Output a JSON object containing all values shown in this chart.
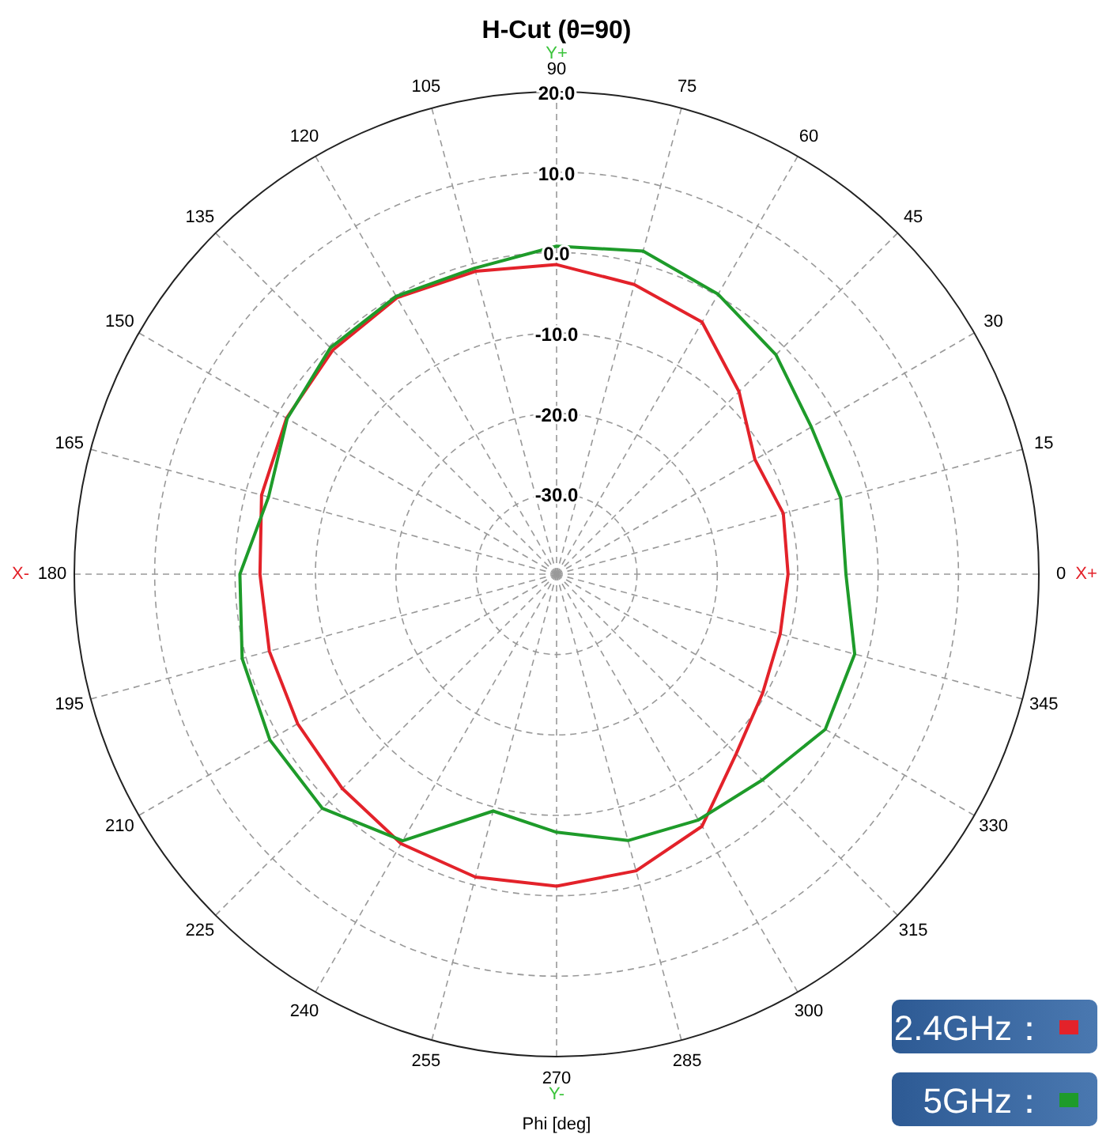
{
  "chart_data": {
    "type": "radar",
    "title": "H-Cut (θ=90)",
    "xlabel": "Phi [deg]",
    "categories": [
      "90",
      "75",
      "60",
      "45",
      "30",
      "15",
      "0",
      "345",
      "330",
      "315",
      "300",
      "285",
      "270",
      "255",
      "240",
      "225",
      "210",
      "195",
      "180",
      "165",
      "150",
      "135",
      "120",
      "105"
    ],
    "series": [
      {
        "name": "2.4GHz：",
        "color": "#e3222a",
        "values": [
          -1.5,
          -2.7,
          -3.8,
          -7.9,
          -11.5,
          -10.8,
          -11.2,
          -11.2,
          -10.4,
          -8.4,
          -3.8,
          -1.8,
          -1.2,
          -1.0,
          -1.3,
          -2.3,
          -2.8,
          -3.0,
          -3.1,
          -2.0,
          -1.2,
          -0.6,
          -0.3,
          -1.0
        ]
      },
      {
        "name": "5GHz：",
        "color": "#1e9b2a",
        "values": [
          0.8,
          1.6,
          0.2,
          -1.4,
          -3.4,
          -3.4,
          -4.0,
          -1.6,
          -1.4,
          -3.8,
          -4.7,
          -5.7,
          -7.9,
          -9.5,
          -1.7,
          1.2,
          1.2,
          0.5,
          -0.6,
          -2.9,
          -1.3,
          -0.2,
          -0.1,
          -0.6
        ]
      }
    ],
    "ylim": [
      -40,
      20
    ],
    "yticks": [
      {
        "value": -30,
        "label": "-30.0"
      },
      {
        "value": -20,
        "label": "-20.0"
      },
      {
        "value": -10,
        "label": "-10.0"
      },
      {
        "value": 0,
        "label": "0.0"
      },
      {
        "value": 10,
        "label": "10.0"
      },
      {
        "value": 20,
        "label": "20.0"
      }
    ],
    "grid": true,
    "legend": "bottom right",
    "marker": "none",
    "line_style": "solid",
    "annotations": [
      "X+",
      "X-",
      "Y+",
      "Y-"
    ]
  }
}
